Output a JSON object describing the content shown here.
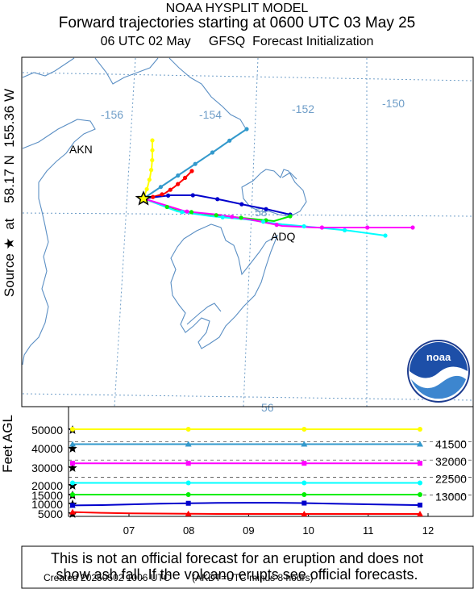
{
  "title": {
    "line1": "NOAA HYSPLIT MODEL",
    "line2": "Forward trajectories starting at 0600 UTC 03 May 25",
    "line3": "06 UTC 02 May     GFSQ  Forecast Initialization"
  },
  "source_label": "Source ★  at    58.17 N  155.36 W",
  "map": {
    "lon_labels": [
      "-156",
      "-154",
      "-152",
      "-150"
    ],
    "lat_labels": [
      "58",
      "56"
    ],
    "place_labels": [
      "AKN",
      "ADQ"
    ],
    "logo_text": "noaa"
  },
  "chart_data": {
    "type": "line",
    "ylabel": "Feet AGL",
    "x_ticks": [
      "07",
      "08",
      "09",
      "10",
      "11",
      "12"
    ],
    "y_ticks": [
      50000,
      40000,
      30000,
      20000,
      15000,
      10000,
      5000
    ],
    "right_labels": [
      "41500",
      "32000",
      "22500",
      "13000"
    ],
    "series": [
      {
        "color": "#ffff00",
        "marker": "circle",
        "values": [
          50000,
          50000,
          50000,
          50000,
          50000,
          50000,
          50000,
          50000,
          50000,
          50000,
          50000,
          50000,
          50000
        ]
      },
      {
        "color": "#3399cc",
        "marker": "triangle",
        "values": [
          41500,
          41500,
          41500,
          41500,
          41500,
          41500,
          41500,
          41500,
          41500,
          41500,
          41500,
          41500,
          41500
        ]
      },
      {
        "color": "#ff00ff",
        "marker": "square",
        "values": [
          32000,
          32000,
          32000,
          32000,
          32000,
          32000,
          32000,
          32000,
          32000,
          32000,
          32000,
          32000,
          32000
        ]
      },
      {
        "color": "#00ffff",
        "marker": "circle",
        "values": [
          22500,
          22500,
          22500,
          22500,
          22500,
          22500,
          22500,
          22500,
          22500,
          22500,
          22500,
          22500,
          22500
        ]
      },
      {
        "color": "#00ee00",
        "marker": "circle",
        "values": [
          17500,
          17500,
          17500,
          17500,
          17500,
          17500,
          17500,
          17500,
          17500,
          17500,
          17500,
          17500,
          17500
        ]
      },
      {
        "color": "#0000cc",
        "marker": "square",
        "values": [
          13000,
          13200,
          13600,
          14000,
          14200,
          14400,
          14500,
          14500,
          14300,
          14000,
          13700,
          13400,
          13200
        ]
      },
      {
        "color": "#ff0000",
        "marker": "triangle",
        "values": [
          6000,
          5600,
          5300,
          5200,
          5100,
          5000,
          5000,
          5000,
          5000,
          5000,
          5000,
          5000,
          5000
        ]
      }
    ]
  },
  "disclaimer": {
    "line1": "This is not an official forecast for an eruption and does not",
    "line2": "show ash fall. If the volcano erupts see official forecasts."
  },
  "footer": "Created 20250502 1006 UTC        (AKDT=UTC minus 8 hours)"
}
